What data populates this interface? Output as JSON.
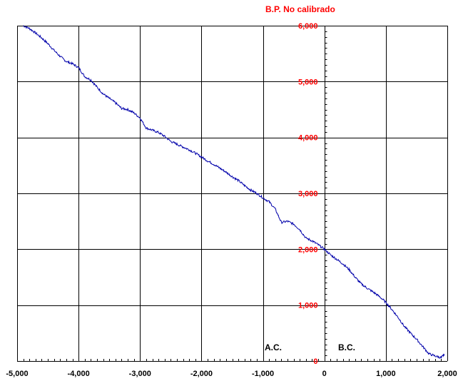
{
  "chart_data": {
    "type": "line",
    "title": "B.P. No calibrado",
    "xlabel": "",
    "ylabel": "",
    "xlim": [
      -5000,
      2000
    ],
    "ylim": [
      0,
      6000
    ],
    "x_ticks": [
      -5000,
      -4000,
      -3000,
      -2000,
      -1000,
      0,
      1000,
      2000
    ],
    "x_tick_labels": [
      "-5,000",
      "-4,000",
      "-3,000",
      "-2,000",
      "-1,000",
      "0",
      "1,000",
      "2,000"
    ],
    "y_ticks": [
      0,
      1000,
      2000,
      3000,
      4000,
      5000,
      6000
    ],
    "y_tick_labels": [
      "0",
      "1,000",
      "2,000",
      "3,000",
      "4,000",
      "5,000",
      "6,000"
    ],
    "grid": true,
    "annotations": [
      "A.C.",
      "B.C."
    ],
    "colors": {
      "line": "#0000aa",
      "y_labels": "#ff0000",
      "grid": "#000000"
    },
    "series": [
      {
        "x": [
          -4900,
          -4800,
          -4700,
          -4600,
          -4500,
          -4400,
          -4300,
          -4200,
          -4100,
          -4000,
          -3900,
          -3800,
          -3700,
          -3600,
          -3500,
          -3400,
          -3300,
          -3200,
          -3100,
          -3000,
          -2900,
          -2800,
          -2700,
          -2600,
          -2500,
          -2400,
          -2300,
          -2200,
          -2100,
          -2000,
          -1900,
          -1800,
          -1700,
          -1600,
          -1500,
          -1400,
          -1300,
          -1200,
          -1100,
          -1000,
          -900,
          -800,
          -700,
          -600,
          -500,
          -400,
          -300,
          -200,
          -100,
          0,
          100,
          200,
          300,
          400,
          500,
          600,
          700,
          800,
          900,
          1000,
          1100,
          1200,
          1300,
          1400,
          1500,
          1600,
          1700,
          1800,
          1900,
          1950
        ],
        "y": [
          6000,
          5950,
          5870,
          5780,
          5680,
          5560,
          5450,
          5360,
          5320,
          5250,
          5090,
          5030,
          4900,
          4780,
          4700,
          4620,
          4520,
          4500,
          4440,
          4350,
          4170,
          4130,
          4090,
          4020,
          3930,
          3880,
          3830,
          3780,
          3720,
          3650,
          3580,
          3520,
          3450,
          3380,
          3300,
          3230,
          3140,
          3060,
          3000,
          2920,
          2850,
          2720,
          2480,
          2500,
          2450,
          2350,
          2200,
          2150,
          2080,
          2000,
          1900,
          1820,
          1740,
          1640,
          1500,
          1380,
          1300,
          1230,
          1150,
          1050,
          920,
          780,
          620,
          500,
          390,
          260,
          130,
          90,
          60,
          120
        ]
      }
    ]
  }
}
